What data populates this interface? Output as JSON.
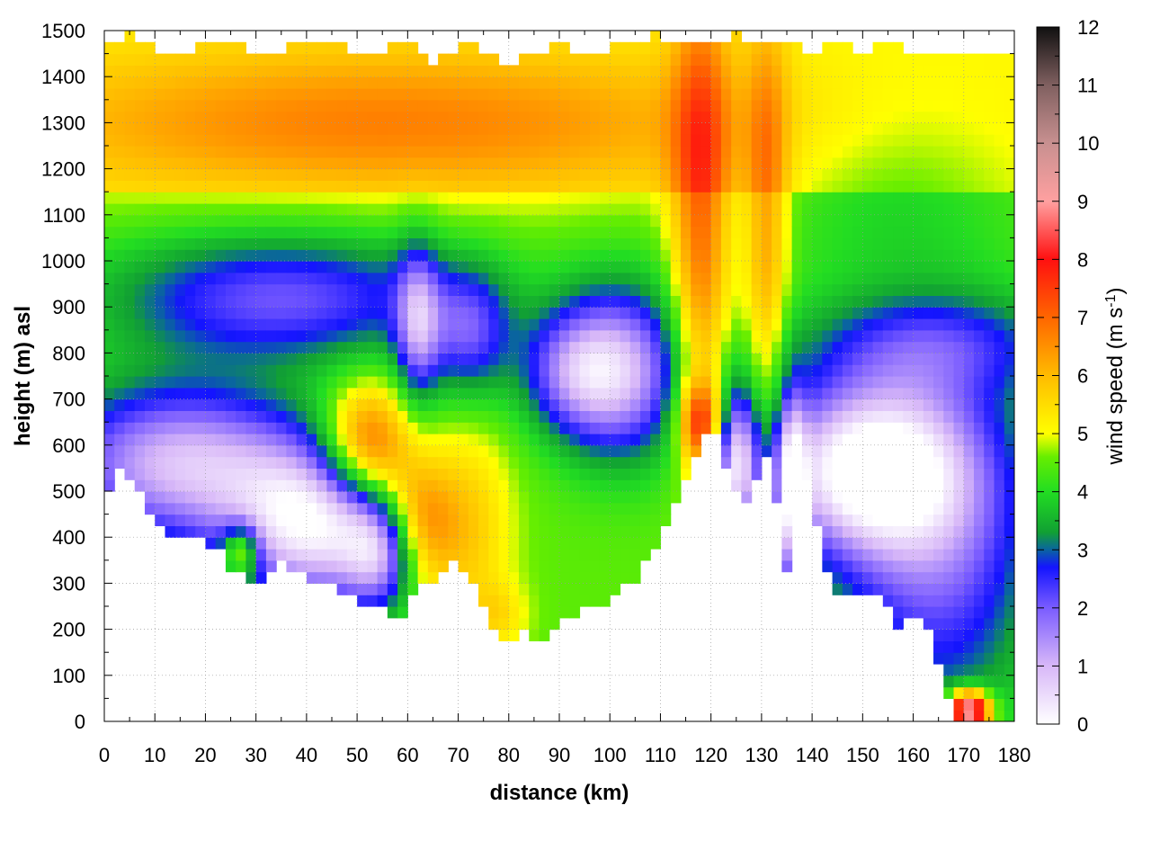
{
  "chart_data": {
    "type": "heatmap",
    "xlabel": "distance (km)",
    "ylabel": "height (m) asl",
    "xlim": [
      0,
      180
    ],
    "ylim": [
      0,
      1500
    ],
    "x_ticks": [
      0,
      10,
      20,
      30,
      40,
      50,
      60,
      70,
      80,
      90,
      100,
      110,
      120,
      130,
      140,
      150,
      160,
      170,
      180
    ],
    "y_ticks": [
      0,
      100,
      200,
      300,
      400,
      500,
      600,
      700,
      800,
      900,
      1000,
      1100,
      1200,
      1300,
      1400,
      1500
    ],
    "grid": true,
    "colorbar": {
      "title_main": "wind speed (m s",
      "title_sup": "-1",
      "title_end": ")",
      "range": [
        0,
        12
      ],
      "ticks": [
        0,
        1,
        2,
        3,
        4,
        5,
        6,
        7,
        8,
        9,
        10,
        11,
        12
      ],
      "palette": [
        {
          "v": 0,
          "c": "#ffffff"
        },
        {
          "v": 1,
          "c": "#d8b8f8"
        },
        {
          "v": 2,
          "c": "#7a5cff"
        },
        {
          "v": 2.7,
          "c": "#1414ff"
        },
        {
          "v": 3,
          "c": "#0a64a0"
        },
        {
          "v": 3.3,
          "c": "#11a033"
        },
        {
          "v": 4,
          "c": "#22dd22"
        },
        {
          "v": 4.6,
          "c": "#66ee00"
        },
        {
          "v": 5,
          "c": "#ffff00"
        },
        {
          "v": 6,
          "c": "#ffbb00"
        },
        {
          "v": 7,
          "c": "#ff6600"
        },
        {
          "v": 8,
          "c": "#ff1010"
        },
        {
          "v": 9,
          "c": "#ffa0a0"
        },
        {
          "v": 10,
          "c": "#c89090"
        },
        {
          "v": 11,
          "c": "#806060"
        },
        {
          "v": 12,
          "c": "#101010"
        }
      ]
    },
    "terrain_m": [
      [
        0,
        470
      ],
      [
        3,
        540
      ],
      [
        6,
        530
      ],
      [
        8,
        460
      ],
      [
        10,
        420
      ],
      [
        12,
        410
      ],
      [
        15,
        410
      ],
      [
        18,
        410
      ],
      [
        22,
        380
      ],
      [
        25,
        330
      ],
      [
        28,
        320
      ],
      [
        30,
        275
      ],
      [
        32,
        310
      ],
      [
        35,
        350
      ],
      [
        40,
        310
      ],
      [
        45,
        290
      ],
      [
        50,
        260
      ],
      [
        55,
        240
      ],
      [
        59,
        215
      ],
      [
        62,
        290
      ],
      [
        66,
        320
      ],
      [
        70,
        350
      ],
      [
        73,
        290
      ],
      [
        76,
        220
      ],
      [
        80,
        160
      ],
      [
        83,
        190
      ],
      [
        86,
        175
      ],
      [
        90,
        210
      ],
      [
        95,
        240
      ],
      [
        100,
        260
      ],
      [
        105,
        310
      ],
      [
        110,
        400
      ],
      [
        115,
        520
      ],
      [
        120,
        640
      ],
      [
        123,
        560
      ],
      [
        126,
        470
      ],
      [
        128,
        480
      ],
      [
        130,
        580
      ],
      [
        132,
        550
      ],
      [
        135,
        330
      ],
      [
        137,
        500
      ],
      [
        139,
        520
      ],
      [
        141,
        420
      ],
      [
        144,
        290
      ],
      [
        148,
        270
      ],
      [
        152,
        285
      ],
      [
        155,
        250
      ],
      [
        157,
        210
      ],
      [
        160,
        250
      ],
      [
        163,
        200
      ],
      [
        166,
        80
      ],
      [
        168,
        15
      ],
      [
        170,
        0
      ],
      [
        180,
        0
      ]
    ],
    "profile_top_m": [
      [
        0,
        1480
      ],
      [
        5,
        1490
      ],
      [
        10,
        1460
      ],
      [
        15,
        1450
      ],
      [
        20,
        1470
      ],
      [
        25,
        1480
      ],
      [
        30,
        1440
      ],
      [
        35,
        1460
      ],
      [
        40,
        1470
      ],
      [
        45,
        1480
      ],
      [
        50,
        1440
      ],
      [
        55,
        1460
      ],
      [
        60,
        1480
      ],
      [
        65,
        1430
      ],
      [
        70,
        1470
      ],
      [
        75,
        1460
      ],
      [
        80,
        1430
      ],
      [
        85,
        1450
      ],
      [
        90,
        1480
      ],
      [
        95,
        1440
      ],
      [
        100,
        1460
      ],
      [
        105,
        1480
      ],
      [
        110,
        1490
      ],
      [
        115,
        1470
      ],
      [
        120,
        1480
      ],
      [
        125,
        1490
      ],
      [
        130,
        1480
      ],
      [
        135,
        1470
      ],
      [
        140,
        1460
      ],
      [
        145,
        1470
      ],
      [
        150,
        1460
      ],
      [
        155,
        1470
      ],
      [
        160,
        1460
      ],
      [
        167,
        1440
      ],
      [
        180,
        1440
      ]
    ],
    "wind_field": {
      "background_mps": 4.5,
      "features": [
        {
          "x": 55,
          "y": 1300,
          "sx": 55,
          "sy": 120,
          "a": 1.6
        },
        {
          "x": 118,
          "y": 1050,
          "sx": 4,
          "sy": 380,
          "a": 2.4
        },
        {
          "x": 131,
          "y": 1050,
          "sx": 3,
          "sy": 320,
          "a": 1.8
        },
        {
          "x": 155,
          "y": 1150,
          "sx": 18,
          "sy": 180,
          "a": -0.6
        },
        {
          "x": 35,
          "y": 920,
          "sx": 25,
          "sy": 100,
          "a": -2.4
        },
        {
          "x": 62,
          "y": 860,
          "sx": 3,
          "sy": 120,
          "a": -2.3
        },
        {
          "x": 72,
          "y": 840,
          "sx": 6,
          "sy": 100,
          "a": -2.0
        },
        {
          "x": 102,
          "y": 760,
          "sx": 9,
          "sy": 130,
          "a": -3.4
        },
        {
          "x": 92,
          "y": 760,
          "sx": 7,
          "sy": 90,
          "a": -1.8
        },
        {
          "x": 52,
          "y": 600,
          "sx": 6,
          "sy": 90,
          "a": 3.0
        },
        {
          "x": 62,
          "y": 430,
          "sx": 5,
          "sy": 100,
          "a": 2.5
        },
        {
          "x": 72,
          "y": 420,
          "sx": 6,
          "sy": 160,
          "a": 1.3
        },
        {
          "x": 78,
          "y": 230,
          "sx": 4,
          "sy": 50,
          "a": 0.8
        },
        {
          "x": 118,
          "y": 650,
          "sx": 3,
          "sy": 60,
          "a": 2.6
        },
        {
          "x": 15,
          "y": 560,
          "sx": 18,
          "sy": 120,
          "a": -3.6
        },
        {
          "x": 42,
          "y": 420,
          "sx": 12,
          "sy": 120,
          "a": -4.0
        },
        {
          "x": 55,
          "y": 360,
          "sx": 5,
          "sy": 80,
          "a": -2.3
        },
        {
          "x": 150,
          "y": 550,
          "sx": 14,
          "sy": 130,
          "a": -4.3
        },
        {
          "x": 165,
          "y": 380,
          "sx": 14,
          "sy": 280,
          "a": -2.5
        },
        {
          "x": 165,
          "y": 820,
          "sx": 20,
          "sy": 80,
          "a": -1.5
        },
        {
          "x": 27,
          "y": 375,
          "sx": 2.5,
          "sy": 40,
          "a": 2.5
        },
        {
          "x": 171,
          "y": 25,
          "sx": 3,
          "sy": 30,
          "a": 5.8
        },
        {
          "x": 125,
          "y": 560,
          "sx": 3,
          "sy": 120,
          "a": -3.5
        },
        {
          "x": 136,
          "y": 480,
          "sx": 2,
          "sy": 160,
          "a": -3.0
        }
      ]
    }
  }
}
